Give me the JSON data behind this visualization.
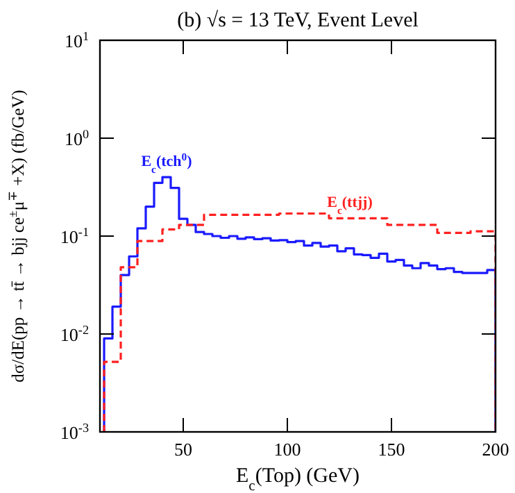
{
  "chart_data": {
    "type": "histogram",
    "title": "(b) √s = 13 TeV, Event Level",
    "xlabel": "E$_{c}$(Top) (GeV)",
    "ylabel": "dσ/dE(pp → tt̄ → bjj ce$^{±}$μ$^{∓}$ +X) (fb/GeV)",
    "log": "y",
    "xlim": [
      10,
      200
    ],
    "xticks": [
      50,
      100,
      150,
      200
    ],
    "ylim": [
      0.001,
      10
    ],
    "yticks": [
      {
        "value": 0.001,
        "label": "10$^{-3}$"
      },
      {
        "value": 0.01,
        "label": "10$^{-2}$"
      },
      {
        "value": 0.1,
        "label": "10$^{-1}$"
      },
      {
        "value": 1,
        "label": "10$^{0}$"
      },
      {
        "value": 10,
        "label": "10$^{1}$"
      }
    ],
    "grid": false,
    "bins": [
      12,
      16,
      20,
      24,
      28,
      32,
      36,
      40,
      44,
      48,
      52,
      56,
      60,
      64,
      68,
      72,
      76,
      80,
      84,
      88,
      92,
      96,
      100,
      104,
      108,
      112,
      116,
      120,
      124,
      128,
      132,
      136,
      140,
      144,
      148,
      152,
      156,
      160,
      164,
      168,
      172,
      176,
      180,
      184,
      188,
      192,
      196,
      200
    ],
    "series": [
      {
        "name": "E$_{c}$(tch$^{0}$)",
        "color": "#1a1aff",
        "line_style": "solid",
        "values": [
          0.009,
          0.019,
          0.04,
          0.062,
          0.12,
          0.2,
          0.35,
          0.4,
          0.31,
          0.15,
          0.13,
          0.11,
          0.105,
          0.1,
          0.096,
          0.1,
          0.094,
          0.097,
          0.093,
          0.095,
          0.09,
          0.091,
          0.087,
          0.089,
          0.08,
          0.085,
          0.078,
          0.08,
          0.07,
          0.075,
          0.065,
          0.064,
          0.06,
          0.066,
          0.055,
          0.057,
          0.05,
          0.047,
          0.053,
          0.05,
          0.046,
          0.047,
          0.043,
          0.042,
          0.042,
          0.042,
          0.045
        ]
      },
      {
        "name": "E$_{c}$(ttjj)",
        "color": "#ff2020",
        "line_style": "dashed",
        "values": [
          0.0052,
          0.0052,
          0.048,
          0.048,
          0.089,
          0.089,
          0.089,
          0.117,
          0.117,
          0.13,
          0.13,
          0.13,
          0.165,
          0.165,
          0.165,
          0.165,
          0.165,
          0.165,
          0.165,
          0.165,
          0.165,
          0.17,
          0.17,
          0.17,
          0.17,
          0.17,
          0.17,
          0.152,
          0.152,
          0.152,
          0.152,
          0.152,
          0.152,
          0.152,
          0.13,
          0.13,
          0.13,
          0.13,
          0.13,
          0.13,
          0.108,
          0.108,
          0.108,
          0.108,
          0.112,
          0.112,
          0.112
        ]
      }
    ]
  }
}
